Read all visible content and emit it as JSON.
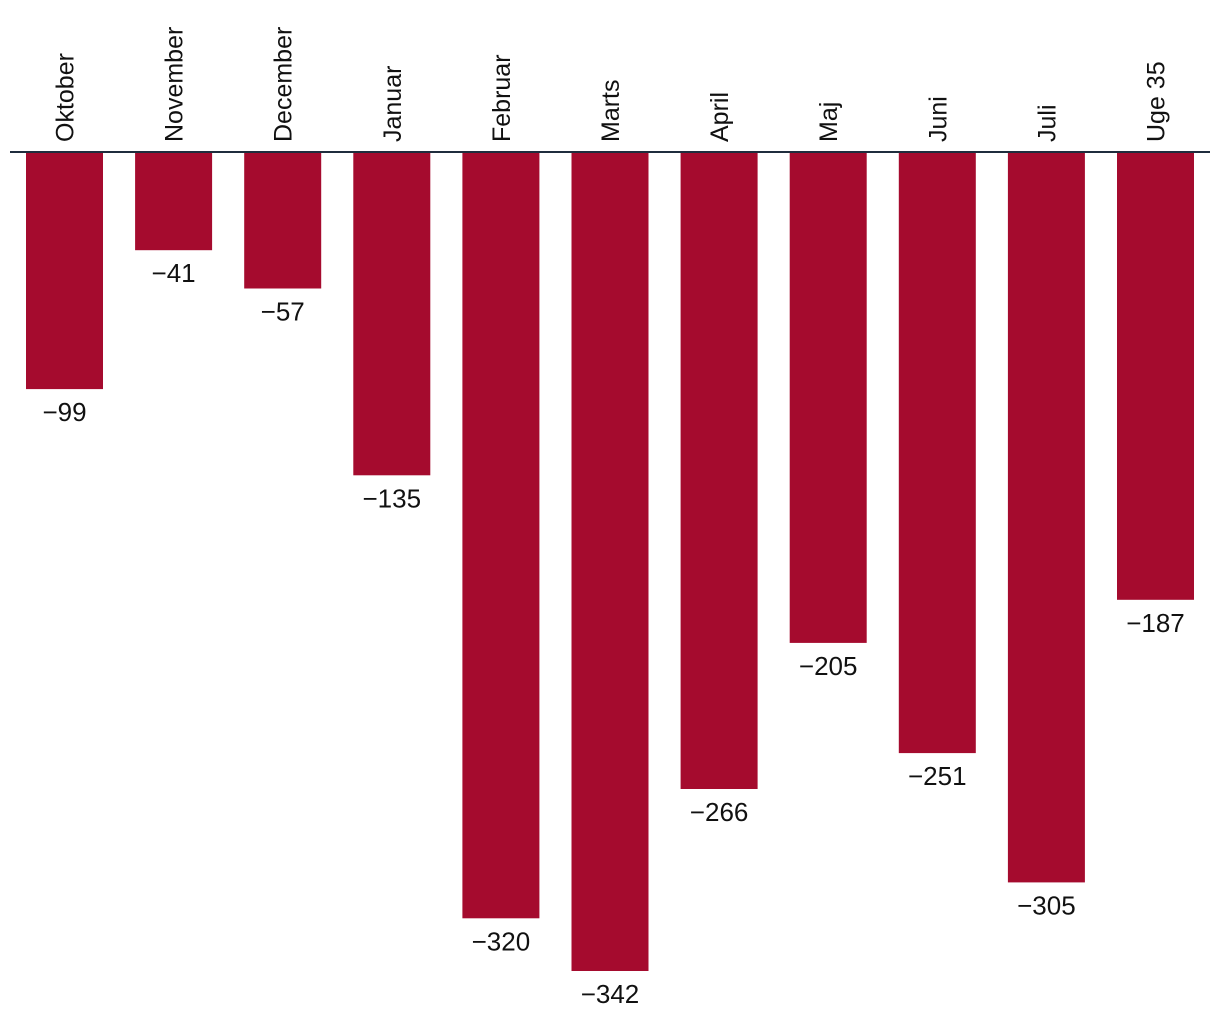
{
  "chart_data": {
    "type": "bar",
    "title": "",
    "xlabel": "",
    "ylabel": "",
    "categories": [
      "Oktober",
      "November",
      "December",
      "Januar",
      "Februar",
      "Marts",
      "April",
      "Maj",
      "Juni",
      "Juli",
      "Uge 35"
    ],
    "values": [
      -99,
      -41,
      -57,
      -135,
      -320,
      -342,
      -266,
      -205,
      -251,
      -305,
      -187
    ],
    "value_labels": [
      "−99",
      "−41",
      "−57",
      "−135",
      "−320",
      "−342",
      "−266",
      "−205",
      "−251",
      "−305",
      "−187"
    ],
    "ylim": [
      -342,
      0
    ],
    "grid": false,
    "legend": "none",
    "category_axis": "top",
    "label_orientation": "vertical"
  },
  "colors": {
    "bar": "#a50b2e",
    "baseline": "#1f2d3d",
    "text": "#111111",
    "background": "#ffffff"
  }
}
